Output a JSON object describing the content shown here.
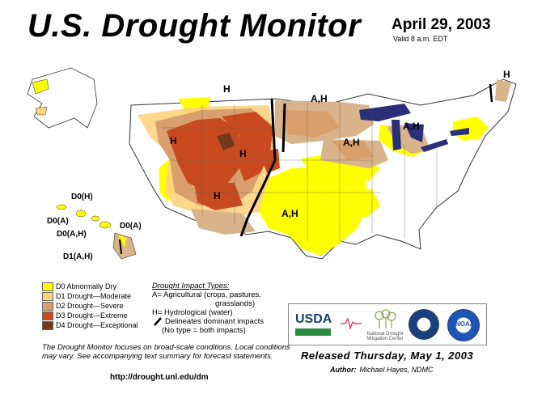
{
  "header": {
    "title": "U.S. Drought Monitor",
    "date": "April 29, 2003",
    "valid": "Valid 8 a.m. EDT"
  },
  "map": {
    "labels": [
      "H",
      "H",
      "H",
      "H",
      "A,H",
      "A,H",
      "A,H",
      "A,H",
      "H"
    ],
    "hawaii_labels": [
      "D0(H)",
      "D0(A)",
      "D0(A,H)",
      "D0(A)",
      "D1(A,H)"
    ]
  },
  "legend": {
    "items": [
      {
        "label": "D0 Abnormally Dry",
        "color": "#ffff00"
      },
      {
        "label": "D1 Drought—Moderate",
        "color": "#fcd37f"
      },
      {
        "label": "D2 Drought—Severe",
        "color": "#d9a06e"
      },
      {
        "label": "D3 Drought—Extreme",
        "color": "#c94a1e"
      },
      {
        "label": "D4 Drought—Exceptional",
        "color": "#73391b"
      }
    ]
  },
  "impact_types": {
    "heading": "Drought Impact Types:",
    "agricultural": "A= Agricultural (crops, pastures,",
    "agricultural_cont": "grasslands)",
    "hydrological": "H= Hydrological (water)",
    "delineates": "Delineates dominant impacts",
    "no_type": "(No type = both impacts)"
  },
  "logos": {
    "usda": "USDA",
    "ndmc": "National Drought Mitigation Center",
    "noaa": "NOAA"
  },
  "footer": {
    "focus_note": "The Drought Monitor focuses on broad-scale conditions. Local conditions may vary. See accompanying text summary for forecast statements.",
    "url": "http://drought.unl.edu/dm",
    "released": "Released Thursday, May 1, 2003",
    "author_label": "Author:",
    "author": "Michael Hayes, NDMC"
  }
}
